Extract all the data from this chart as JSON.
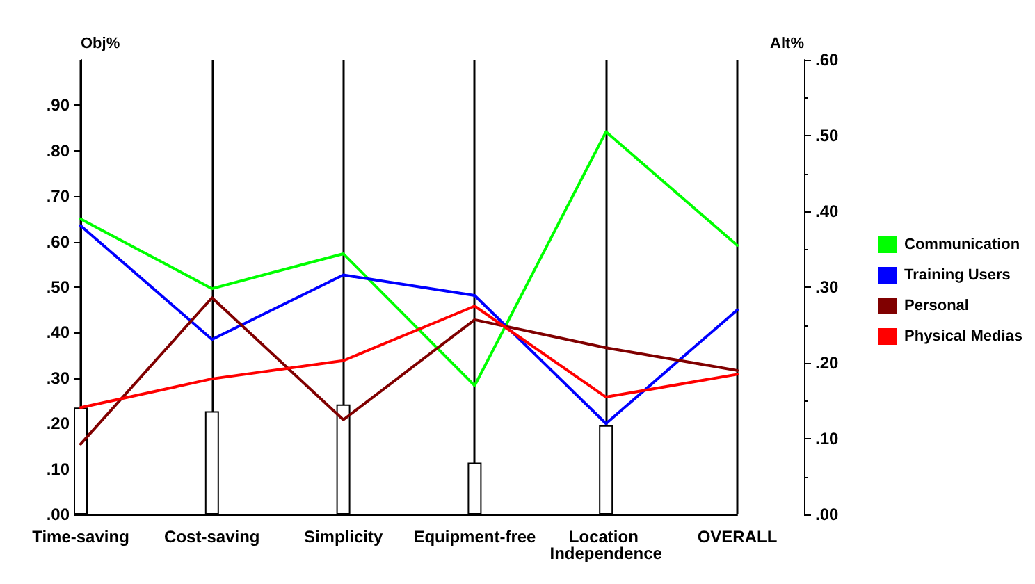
{
  "chart_data": {
    "type": "line",
    "ylabel": "Obj%",
    "y2label": "Alt%",
    "categories": [
      "Time-saving",
      "Cost-saving",
      "Simplicity",
      "Equipment-free",
      "Location Independence",
      "OVERALL"
    ],
    "series": [
      {
        "type": "bar",
        "color": "#ffffff",
        "values": [
          0.235,
          0.227,
          0.242,
          0.114,
          0.196,
          null
        ]
      },
      {
        "name": "Communication",
        "color": "#00ff00",
        "axis": "y2",
        "values": [
          0.39,
          0.298,
          0.344,
          0.17,
          0.505,
          0.355
        ]
      },
      {
        "name": "Training Users",
        "color": "#0000ff",
        "axis": "y2",
        "values": [
          0.381,
          0.231,
          0.316,
          0.289,
          0.12,
          0.27
        ]
      },
      {
        "name": "Personal",
        "color": "#800000",
        "axis": "y2",
        "values": [
          0.093,
          0.286,
          0.125,
          0.257,
          0.22,
          0.19
        ]
      },
      {
        "name": "Physical Medias",
        "color": "#ff0000",
        "axis": "y2",
        "values": [
          0.141,
          0.179,
          0.203,
          0.275,
          0.155,
          0.185
        ]
      }
    ],
    "ylim": [
      0,
      1
    ],
    "yticks": [
      {
        "value": 0,
        "label": ".00"
      },
      {
        "value": 0.1,
        "label": ".10"
      },
      {
        "value": 0.2,
        "label": ".20"
      },
      {
        "value": 0.3,
        "label": ".30"
      },
      {
        "value": 0.4,
        "label": ".40"
      },
      {
        "value": 0.5,
        "label": ".50"
      },
      {
        "value": 0.6,
        "label": ".60"
      },
      {
        "value": 0.7,
        "label": ".70"
      },
      {
        "value": 0.8,
        "label": ".80"
      },
      {
        "value": 0.9,
        "label": ".90"
      }
    ],
    "y2lim": [
      0,
      0.6
    ],
    "y2ticks": [
      {
        "value": 0,
        "label": ".00"
      },
      {
        "value": 0.1,
        "label": ".10"
      },
      {
        "value": 0.2,
        "label": ".20"
      },
      {
        "value": 0.3,
        "label": ".30"
      },
      {
        "value": 0.4,
        "label": ".40"
      },
      {
        "value": 0.5,
        "label": ".50"
      },
      {
        "value": 0.6,
        "label": ".60"
      }
    ],
    "grid": "x",
    "legend": "right",
    "marker": "none",
    "line_style": "solid"
  }
}
